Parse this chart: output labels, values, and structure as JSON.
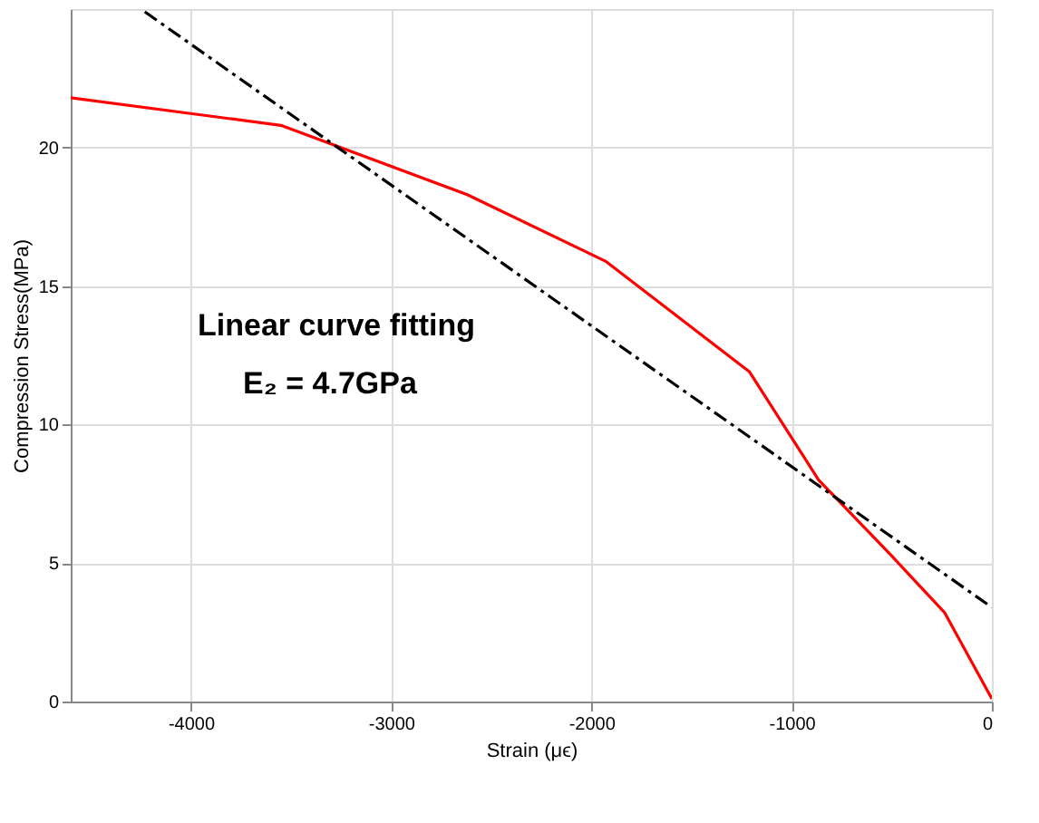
{
  "chart_data": {
    "type": "line",
    "xlabel": "Strain (μϵ)",
    "ylabel": "Compression Stress(MPa)",
    "xlim": [
      -4600,
      0
    ],
    "ylim": [
      0,
      25
    ],
    "xticks": [
      -4000,
      -3000,
      -2000,
      -1000,
      0
    ],
    "yticks": [
      0,
      5,
      10,
      15,
      20
    ],
    "grid": true,
    "annotations": [
      "Linear curve fitting",
      "E₂ = 4.7GPa"
    ],
    "series": [
      {
        "color": "#ff0000",
        "x": [
          -4600,
          -3550,
          -2620,
          -1930,
          -1210,
          -865,
          -505,
          -235,
          0
        ],
        "values": [
          21.8,
          20.8,
          18.3,
          15.9,
          11.9,
          8.0,
          5.3,
          3.2,
          0.1
        ],
        "line_style": "solid"
      },
      {
        "color": "#000000",
        "x": [
          -4230,
          0
        ],
        "values": [
          24.9,
          3.4
        ],
        "line_style": "dashed"
      }
    ]
  }
}
